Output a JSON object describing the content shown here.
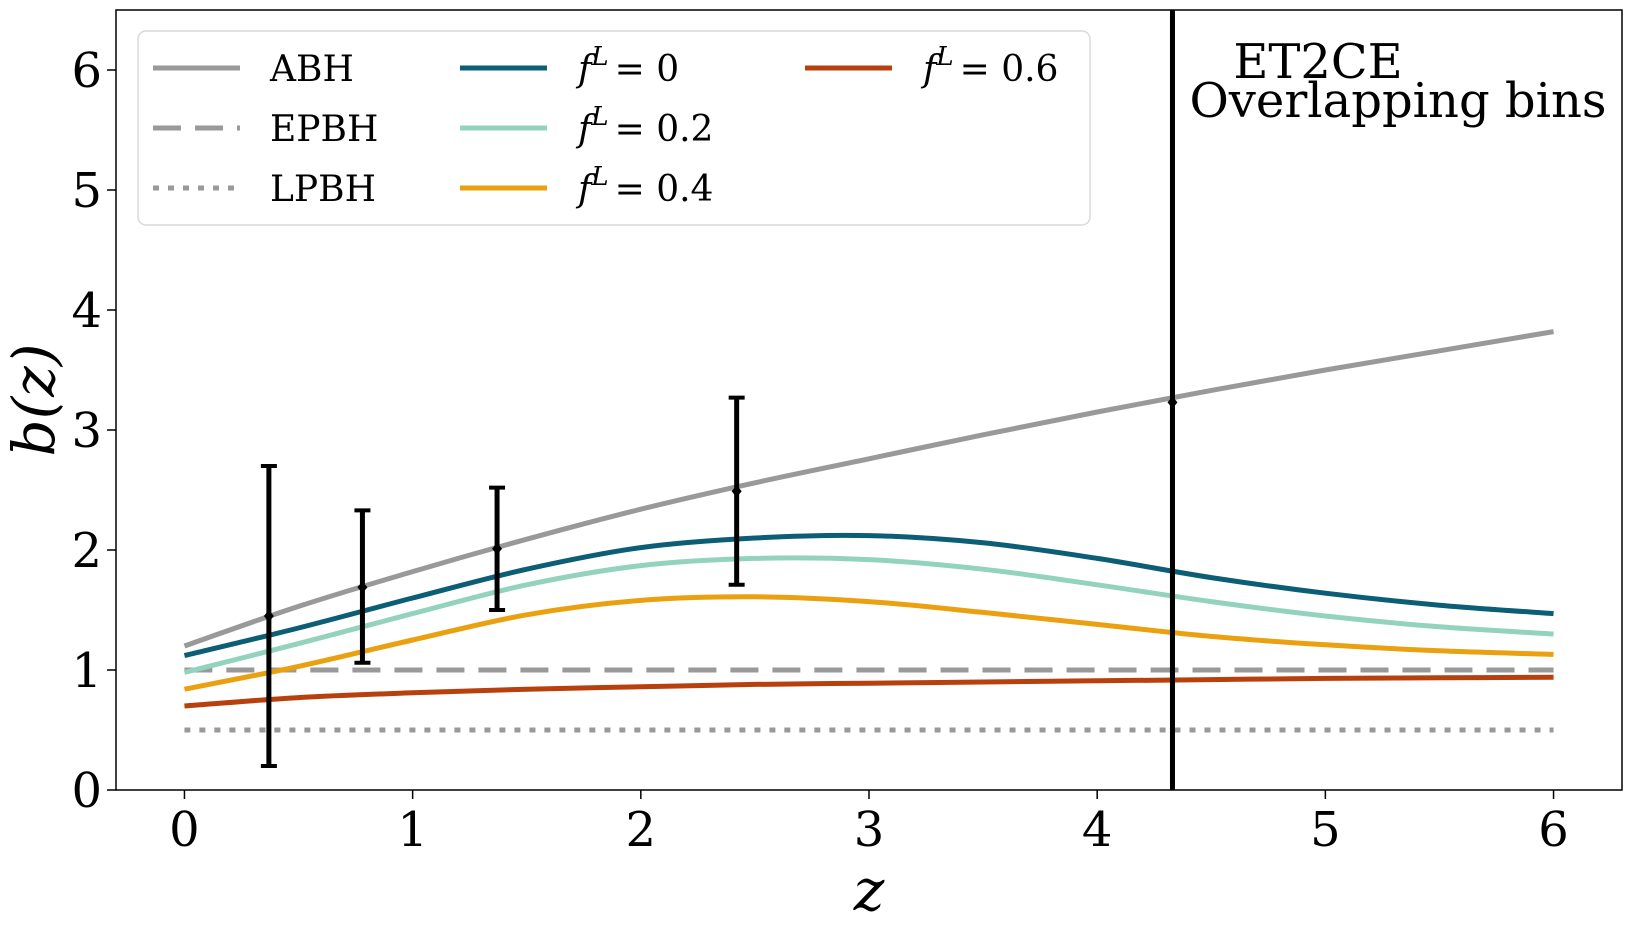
{
  "chart_data": {
    "type": "line",
    "xlabel": "z",
    "ylabel": "b(z)",
    "xlim": [
      -0.3,
      6.3
    ],
    "ylim": [
      0,
      6.5
    ],
    "x_ticks": [
      "0",
      "1",
      "2",
      "3",
      "4",
      "5",
      "6"
    ],
    "y_ticks": [
      "0",
      "1",
      "2",
      "3",
      "4",
      "5",
      "6"
    ],
    "grid": false,
    "legend_position": "top-left",
    "annotation": {
      "line1": "ET2CE",
      "line2": "Overlapping bins"
    },
    "vertical_line_x": 4.33,
    "series": [
      {
        "name": "ABH",
        "legend_label": "ABH",
        "color": "#999999",
        "dash": "solid",
        "x": [
          0,
          0.5,
          1,
          1.5,
          2,
          2.5,
          3,
          3.5,
          4,
          4.5,
          5,
          5.5,
          6
        ],
        "y": [
          1.2,
          1.53,
          1.82,
          2.09,
          2.34,
          2.56,
          2.76,
          2.96,
          3.15,
          3.33,
          3.5,
          3.66,
          3.82
        ]
      },
      {
        "name": "EPBH",
        "legend_label": "EPBH",
        "color": "#999999",
        "dash": "dashed",
        "x": [
          0,
          6
        ],
        "y": [
          1.0,
          1.0
        ]
      },
      {
        "name": "LPBH",
        "legend_label": "LPBH",
        "color": "#999999",
        "dash": "dotted",
        "x": [
          0,
          6
        ],
        "y": [
          0.5,
          0.5
        ]
      },
      {
        "name": "f^L = 0",
        "legend_math": "f",
        "legend_sup": "L",
        "legend_value": "= 0",
        "color": "#0b5e75",
        "dash": "solid",
        "x": [
          0,
          0.5,
          1,
          1.5,
          2,
          2.5,
          3,
          3.5,
          4,
          4.5,
          5,
          5.5,
          6
        ],
        "y": [
          1.12,
          1.35,
          1.6,
          1.84,
          2.02,
          2.1,
          2.12,
          2.06,
          1.93,
          1.77,
          1.64,
          1.54,
          1.47
        ]
      },
      {
        "name": "f^L = 0.2",
        "legend_math": "f",
        "legend_sup": "L",
        "legend_value": "= 0.2",
        "color": "#93d3bd",
        "dash": "solid",
        "x": [
          0,
          0.5,
          1,
          1.5,
          2,
          2.5,
          3,
          3.5,
          4,
          4.5,
          5,
          5.5,
          6
        ],
        "y": [
          0.98,
          1.22,
          1.47,
          1.71,
          1.87,
          1.93,
          1.92,
          1.84,
          1.71,
          1.57,
          1.45,
          1.36,
          1.3
        ]
      },
      {
        "name": "f^L = 0.4",
        "legend_math": "f",
        "legend_sup": "L",
        "legend_value": "= 0.4",
        "color": "#eaa00f",
        "dash": "solid",
        "x": [
          0,
          0.5,
          1,
          1.5,
          2,
          2.5,
          3,
          3.5,
          4,
          4.5,
          5,
          5.5,
          6
        ],
        "y": [
          0.84,
          1.03,
          1.25,
          1.46,
          1.58,
          1.61,
          1.57,
          1.48,
          1.38,
          1.28,
          1.21,
          1.16,
          1.13
        ]
      },
      {
        "name": "f^L = 0.6",
        "legend_math": "f",
        "legend_sup": "L",
        "legend_value": "= 0.6",
        "color": "#b8400c",
        "dash": "solid",
        "x": [
          0,
          0.5,
          1,
          1.5,
          2,
          2.5,
          3,
          3.5,
          4,
          4.5,
          5,
          5.5,
          6
        ],
        "y": [
          0.7,
          0.77,
          0.81,
          0.84,
          0.86,
          0.88,
          0.89,
          0.9,
          0.91,
          0.92,
          0.93,
          0.935,
          0.94
        ]
      }
    ],
    "error_points": [
      {
        "x": 0.37,
        "y": 1.45,
        "ylow": 0.2,
        "yhigh": 2.7
      },
      {
        "x": 0.78,
        "y": 1.69,
        "ylow": 1.06,
        "yhigh": 2.33
      },
      {
        "x": 1.37,
        "y": 2.01,
        "ylow": 1.5,
        "yhigh": 2.52
      },
      {
        "x": 2.42,
        "y": 2.49,
        "ylow": 1.71,
        "yhigh": 3.27
      },
      {
        "x": 4.33,
        "y": 3.23,
        "ylow": 0,
        "yhigh": 6.5
      }
    ]
  }
}
